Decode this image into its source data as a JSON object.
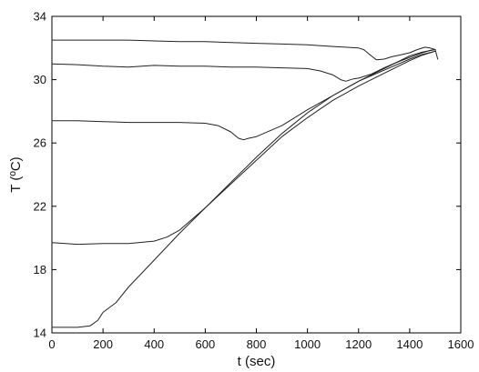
{
  "chart_data": {
    "type": "line",
    "title": "",
    "xlabel": "t (sec)",
    "ylabel": "T (ºC)",
    "xlim": [
      0,
      1600
    ],
    "ylim": [
      14,
      34
    ],
    "xticks": [
      0,
      200,
      400,
      600,
      800,
      1000,
      1200,
      1400,
      1600
    ],
    "yticks": [
      14,
      18,
      22,
      26,
      30,
      34
    ],
    "grid": false,
    "series": [
      {
        "x": [
          0,
          100,
          200,
          300,
          400,
          500,
          600,
          700,
          800,
          900,
          1000,
          1100,
          1150,
          1200,
          1220,
          1250,
          1270,
          1300,
          1330,
          1360,
          1400,
          1430,
          1460,
          1480,
          1500,
          1510
        ],
        "y": [
          32.5,
          32.5,
          32.5,
          32.5,
          32.45,
          32.4,
          32.4,
          32.35,
          32.3,
          32.25,
          32.2,
          32.1,
          32.05,
          32.0,
          31.9,
          31.5,
          31.25,
          31.3,
          31.45,
          31.55,
          31.7,
          31.9,
          32.05,
          32.0,
          31.9,
          31.3
        ]
      },
      {
        "x": [
          0,
          100,
          200,
          300,
          400,
          500,
          600,
          700,
          800,
          900,
          1000,
          1050,
          1100,
          1130,
          1150,
          1180,
          1200,
          1250,
          1300,
          1350,
          1400,
          1450,
          1480,
          1500
        ],
        "y": [
          31.0,
          30.95,
          30.85,
          30.8,
          30.9,
          30.85,
          30.85,
          30.8,
          30.8,
          30.75,
          30.7,
          30.55,
          30.3,
          30.0,
          29.9,
          30.05,
          30.1,
          30.35,
          30.75,
          31.1,
          31.4,
          31.7,
          31.85,
          31.9
        ]
      },
      {
        "x": [
          0,
          100,
          200,
          300,
          400,
          500,
          600,
          650,
          700,
          730,
          750,
          770,
          800,
          900,
          1000,
          1100,
          1200,
          1300,
          1400,
          1450,
          1500
        ],
        "y": [
          27.4,
          27.4,
          27.35,
          27.3,
          27.3,
          27.3,
          27.25,
          27.1,
          26.7,
          26.3,
          26.2,
          26.3,
          26.4,
          27.1,
          28.1,
          29.0,
          29.9,
          30.7,
          31.5,
          31.75,
          31.9
        ]
      },
      {
        "x": [
          0,
          100,
          200,
          300,
          400,
          450,
          500,
          600,
          700,
          800,
          900,
          1000,
          1100,
          1200,
          1300,
          1400,
          1450,
          1500
        ],
        "y": [
          19.7,
          19.6,
          19.65,
          19.65,
          19.8,
          20.05,
          20.5,
          21.9,
          23.4,
          24.9,
          26.4,
          27.6,
          28.7,
          29.6,
          30.4,
          31.2,
          31.55,
          31.8
        ]
      },
      {
        "x": [
          0,
          100,
          150,
          180,
          200,
          250,
          300,
          400,
          500,
          600,
          700,
          800,
          900,
          1000,
          1100,
          1200,
          1300,
          1400,
          1450,
          1500
        ],
        "y": [
          14.35,
          14.35,
          14.45,
          14.8,
          15.3,
          15.9,
          16.9,
          18.6,
          20.3,
          21.9,
          23.5,
          25.1,
          26.6,
          27.9,
          29.0,
          29.9,
          30.6,
          31.3,
          31.6,
          31.8
        ]
      }
    ]
  }
}
